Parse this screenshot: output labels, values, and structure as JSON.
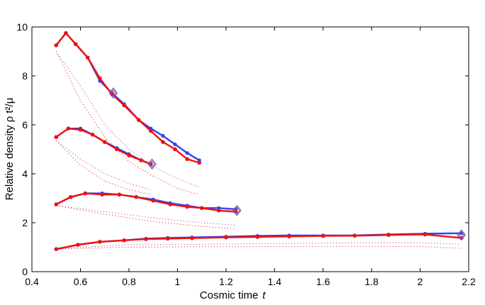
{
  "chart_data": {
    "type": "line",
    "xlabel": "Cosmic time",
    "xlabel_var": "t",
    "ylabel": "Relative density ρ t²/μ",
    "xlim": [
      0.4,
      2.2
    ],
    "ylim": [
      0,
      10
    ],
    "xticks": [
      "0.4",
      "0.6",
      "0.8",
      "1",
      "1.2",
      "1.4",
      "1.6",
      "1.8",
      "2",
      "2.2"
    ],
    "yticks": [
      "0",
      "2",
      "4",
      "6",
      "8",
      "10"
    ],
    "xtick_values": [
      0.4,
      0.6,
      0.8,
      1.0,
      1.2,
      1.4,
      1.6,
      1.8,
      2.0,
      2.2
    ],
    "ytick_values": [
      0,
      2,
      4,
      6,
      8,
      10
    ],
    "grid": false,
    "colors": {
      "blue": "#3344ee",
      "red": "#ee1111",
      "end_marker": "#7a4fb0"
    },
    "groups": [
      {
        "blue": {
          "x": [
            0.5,
            0.54,
            0.58,
            0.63,
            0.68,
            0.73,
            0.78,
            0.84,
            0.89,
            0.94,
            0.99,
            1.04,
            1.09
          ],
          "y": [
            9.25,
            9.75,
            9.3,
            8.75,
            7.8,
            7.3,
            6.85,
            6.2,
            5.85,
            5.55,
            5.2,
            4.85,
            4.55
          ]
        },
        "red": {
          "x": [
            0.5,
            0.54,
            0.58,
            0.63,
            0.68,
            0.73,
            0.78,
            0.84,
            0.89,
            0.94,
            0.99,
            1.04,
            1.09
          ],
          "y": [
            9.25,
            9.75,
            9.3,
            8.75,
            7.9,
            7.25,
            6.8,
            6.2,
            5.75,
            5.3,
            5.0,
            4.6,
            4.45
          ]
        },
        "dotted_a": {
          "x": [
            0.5,
            0.6,
            0.7,
            0.8,
            0.9,
            1.0,
            1.09
          ],
          "y": [
            9.0,
            7.6,
            6.0,
            5.0,
            4.3,
            3.8,
            3.45
          ]
        },
        "dotted_b": {
          "x": [
            0.5,
            0.6,
            0.7,
            0.8,
            0.9,
            1.0,
            1.09
          ],
          "y": [
            9.0,
            7.0,
            5.5,
            4.5,
            3.9,
            3.4,
            3.15
          ]
        },
        "end_marker": {
          "x": 0.735,
          "y": 7.3
        }
      },
      {
        "blue": {
          "x": [
            0.5,
            0.55,
            0.6,
            0.65,
            0.7,
            0.75,
            0.8,
            0.85,
            0.89
          ],
          "y": [
            5.5,
            5.85,
            5.85,
            5.6,
            5.3,
            5.05,
            4.8,
            4.55,
            4.4
          ]
        },
        "red": {
          "x": [
            0.5,
            0.55,
            0.6,
            0.65,
            0.7,
            0.75,
            0.8,
            0.85,
            0.89
          ],
          "y": [
            5.5,
            5.85,
            5.8,
            5.6,
            5.3,
            5.0,
            4.75,
            4.55,
            4.4
          ]
        },
        "dotted_a": {
          "x": [
            0.5,
            0.6,
            0.7,
            0.8,
            0.89
          ],
          "y": [
            5.35,
            4.6,
            4.0,
            3.6,
            3.35
          ]
        },
        "dotted_b": {
          "x": [
            0.5,
            0.6,
            0.7,
            0.8,
            0.89
          ],
          "y": [
            5.35,
            4.35,
            3.7,
            3.35,
            3.15
          ]
        },
        "end_marker": {
          "x": 0.895,
          "y": 4.4
        }
      },
      {
        "blue": {
          "x": [
            0.5,
            0.56,
            0.62,
            0.69,
            0.76,
            0.83,
            0.9,
            0.97,
            1.04,
            1.1,
            1.17,
            1.24
          ],
          "y": [
            2.75,
            3.05,
            3.2,
            3.2,
            3.15,
            3.05,
            2.95,
            2.8,
            2.7,
            2.6,
            2.6,
            2.55
          ]
        },
        "red": {
          "x": [
            0.5,
            0.56,
            0.62,
            0.69,
            0.76,
            0.83,
            0.9,
            0.97,
            1.04,
            1.1,
            1.17,
            1.24
          ],
          "y": [
            2.75,
            3.05,
            3.2,
            3.15,
            3.15,
            3.05,
            2.9,
            2.75,
            2.65,
            2.6,
            2.5,
            2.45
          ]
        },
        "dotted_a": {
          "x": [
            0.5,
            0.7,
            0.9,
            1.1,
            1.24
          ],
          "y": [
            2.7,
            2.45,
            2.2,
            2.0,
            1.9
          ]
        },
        "dotted_b": {
          "x": [
            0.5,
            0.7,
            0.9,
            1.1,
            1.24
          ],
          "y": [
            2.7,
            2.35,
            2.05,
            1.85,
            1.75
          ]
        },
        "end_marker": {
          "x": 1.245,
          "y": 2.5
        }
      },
      {
        "blue": {
          "x": [
            0.5,
            0.59,
            0.68,
            0.78,
            0.87,
            0.96,
            1.06,
            1.2,
            1.33,
            1.46,
            1.6,
            1.73,
            1.87,
            2.02,
            2.17
          ],
          "y": [
            0.92,
            1.1,
            1.22,
            1.28,
            1.35,
            1.38,
            1.4,
            1.43,
            1.46,
            1.48,
            1.48,
            1.48,
            1.52,
            1.55,
            1.57
          ]
        },
        "red": {
          "x": [
            0.5,
            0.59,
            0.68,
            0.78,
            0.87,
            0.96,
            1.06,
            1.2,
            1.33,
            1.46,
            1.6,
            1.73,
            1.87,
            2.02,
            2.17
          ],
          "y": [
            0.92,
            1.1,
            1.22,
            1.28,
            1.33,
            1.35,
            1.37,
            1.4,
            1.42,
            1.44,
            1.46,
            1.47,
            1.5,
            1.52,
            1.38
          ]
        },
        "dotted_a": {
          "x": [
            0.5,
            0.8,
            1.1,
            1.4,
            1.7,
            2.0,
            2.17
          ],
          "y": [
            0.95,
            1.1,
            1.12,
            1.15,
            1.18,
            1.18,
            1.12
          ]
        },
        "dotted_b": {
          "x": [
            0.5,
            0.8,
            1.1,
            1.4,
            1.7,
            2.0,
            2.17
          ],
          "y": [
            0.93,
            1.0,
            1.02,
            1.02,
            1.03,
            1.03,
            0.95
          ]
        },
        "end_marker": {
          "x": 2.17,
          "y": 1.5
        }
      }
    ]
  }
}
